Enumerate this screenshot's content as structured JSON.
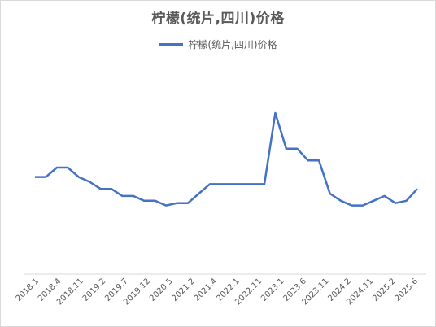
{
  "chart_data": {
    "type": "line",
    "title": "柠檬(统片,四川)价格",
    "legend_position": "top",
    "grid": false,
    "color": "#4472c4",
    "x_tick_labels": [
      "2018.1",
      "2018.4",
      "2018.11",
      "2019.2",
      "2019.7",
      "2019.12",
      "2020.5",
      "2021.2",
      "2021.4",
      "2022.1",
      "2022.11",
      "2023.1",
      "2023.6",
      "2023.11",
      "2024.2",
      "2024.11",
      "2025.2",
      "2025.6"
    ],
    "series": [
      {
        "name": "柠檬(统片,四川)价格",
        "values": [
          4.1,
          4.1,
          4.5,
          4.5,
          4.1,
          3.9,
          3.6,
          3.6,
          3.3,
          3.3,
          3.1,
          3.1,
          2.9,
          3.0,
          3.0,
          3.4,
          3.8,
          3.8,
          3.8,
          3.8,
          3.8,
          3.8,
          6.8,
          5.3,
          5.3,
          4.8,
          4.8,
          3.4,
          3.1,
          2.9,
          2.9,
          3.1,
          3.3,
          3.0,
          3.1,
          3.6
        ]
      }
    ],
    "ylim": [
      0,
      9
    ]
  }
}
